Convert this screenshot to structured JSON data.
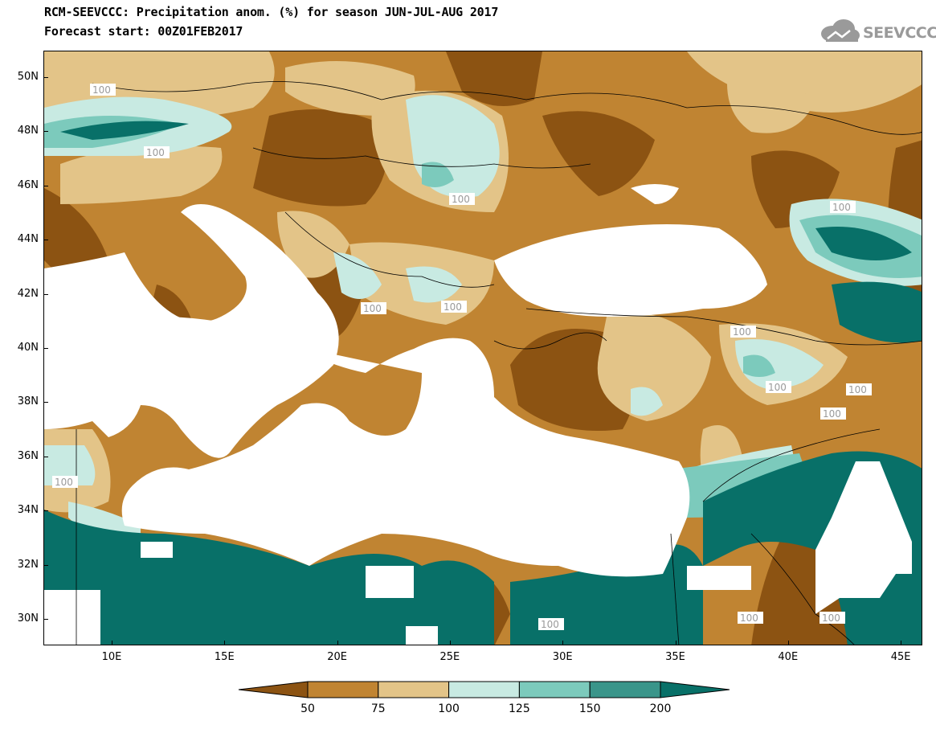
{
  "header": {
    "title": "RCM-SEEVCCC: Precipitation anom. (%) for season JUN-JUL-AUG 2017",
    "subtitle": "Forecast start: 00Z01FEB2017"
  },
  "logo": {
    "text": "SEEVCCC",
    "icon": "cloud-icon"
  },
  "map": {
    "lat_labels": [
      "50N",
      "48N",
      "46N",
      "44N",
      "42N",
      "40N",
      "38N",
      "36N",
      "34N",
      "32N",
      "30N"
    ],
    "lon_labels": [
      "10E",
      "15E",
      "20E",
      "25E",
      "30E",
      "35E",
      "40E",
      "45E"
    ],
    "contour_label": "100"
  },
  "colorbar": {
    "levels": [
      "50",
      "75",
      "100",
      "125",
      "150",
      "200"
    ],
    "colors": [
      "#8c5312",
      "#c08432",
      "#e3c488",
      "#c8eae2",
      "#7ccabc",
      "#3a958a",
      "#087068"
    ]
  },
  "palette": {
    "sea": "#ffffff",
    "very_dry": "#8c5312",
    "dry": "#c08432",
    "slightly_dry": "#e3c488",
    "slightly_wet": "#c8eae2",
    "wet": "#7ccabc",
    "very_wet": "#087068"
  }
}
